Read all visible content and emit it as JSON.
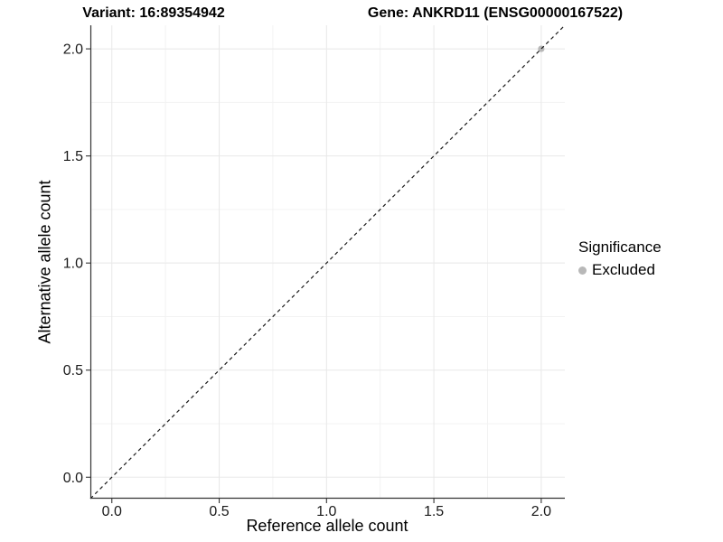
{
  "chart_data": {
    "type": "scatter",
    "titles": {
      "variant": "Variant: 16:89354942",
      "gene": "Gene: ANKRD11 (ENSG00000167522)"
    },
    "xlabel": "Reference allele count",
    "ylabel": "Alternative allele count",
    "xlim": [
      -0.1,
      2.11
    ],
    "ylim": [
      -0.1,
      2.11
    ],
    "x_ticks": {
      "values": [
        0,
        0.5,
        1,
        1.5,
        2
      ],
      "labels": [
        "0.0",
        "0.5",
        "1.0",
        "1.5",
        "2.0"
      ]
    },
    "y_ticks": {
      "values": [
        0,
        0.5,
        1,
        1.5,
        2
      ],
      "labels": [
        "0.0",
        "0.5",
        "1.0",
        "1.5",
        "2.0"
      ]
    },
    "minor_ticks": [
      0.25,
      0.75,
      1.25,
      1.75
    ],
    "grid": true,
    "reference_line": {
      "type": "abline",
      "slope": 1,
      "intercept": 0,
      "linetype": "dashed",
      "color": "#1a1a1a"
    },
    "points": [
      {
        "x": 2,
        "y": 2,
        "series": "Excluded"
      }
    ],
    "legend": {
      "title": "Significance",
      "position": "right",
      "items": [
        {
          "label": "Excluded",
          "color": "#b8b8b8"
        }
      ]
    },
    "colors": {
      "background": "#ffffff",
      "grid_major": "#e8e8e8",
      "grid_minor": "#f1f1f1",
      "axis_line": "#333333",
      "tick_text": "#1a1a1a",
      "point_excluded": "#b8b8b8"
    }
  }
}
